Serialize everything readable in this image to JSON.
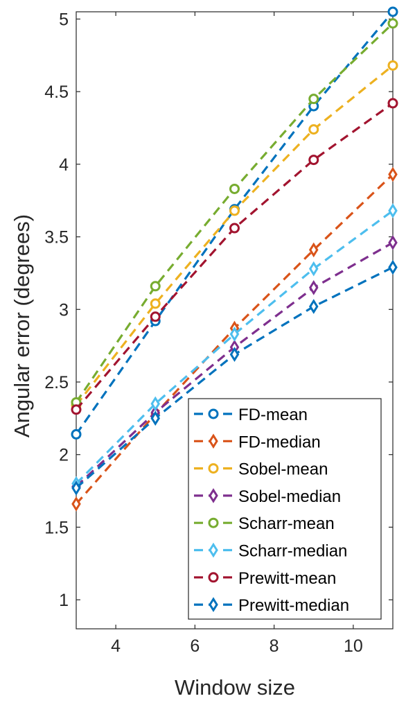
{
  "chart_data": {
    "type": "line",
    "title": "",
    "xlabel": "Window size",
    "ylabel": "Angular error (degrees)",
    "xlim": [
      3,
      11
    ],
    "ylim": [
      0.8,
      5.05
    ],
    "xticks": [
      "4",
      "6",
      "8",
      "10"
    ],
    "xtick_values": [
      4,
      6,
      8,
      10
    ],
    "yticks": [
      "1",
      "1.5",
      "2",
      "2.5",
      "3",
      "3.5",
      "4",
      "4.5",
      "5"
    ],
    "ytick_values": [
      1,
      1.5,
      2,
      2.5,
      3,
      3.5,
      4,
      4.5,
      5
    ],
    "grid": false,
    "legend_position": "bottom-right",
    "x": [
      3,
      5,
      7,
      9,
      11
    ],
    "series": [
      {
        "name": "FD-mean",
        "values": [
          2.14,
          2.92,
          3.69,
          4.4,
          5.05
        ],
        "color": "#0072BD",
        "marker": "circle"
      },
      {
        "name": "FD-median",
        "values": [
          1.66,
          2.28,
          2.87,
          3.41,
          3.93
        ],
        "color": "#D95319",
        "marker": "diamond"
      },
      {
        "name": "Sobel-mean",
        "values": [
          2.34,
          3.04,
          3.68,
          4.24,
          4.68
        ],
        "color": "#EDB120",
        "marker": "circle"
      },
      {
        "name": "Sobel-median",
        "values": [
          1.78,
          2.29,
          2.74,
          3.15,
          3.46
        ],
        "color": "#7E2F8E",
        "marker": "diamond"
      },
      {
        "name": "Scharr-mean",
        "values": [
          2.36,
          3.16,
          3.83,
          4.45,
          4.97
        ],
        "color": "#77AC30",
        "marker": "circle"
      },
      {
        "name": "Scharr-median",
        "values": [
          1.8,
          2.35,
          2.83,
          3.28,
          3.68
        ],
        "color": "#4DBEEE",
        "marker": "diamond"
      },
      {
        "name": "Prewitt-mean",
        "values": [
          2.31,
          2.95,
          3.56,
          4.03,
          4.42
        ],
        "color": "#A2142F",
        "marker": "circle"
      },
      {
        "name": "Prewitt-median",
        "values": [
          1.77,
          2.25,
          2.69,
          3.02,
          3.29
        ],
        "color": "#0072BD",
        "marker": "diamond"
      }
    ]
  }
}
